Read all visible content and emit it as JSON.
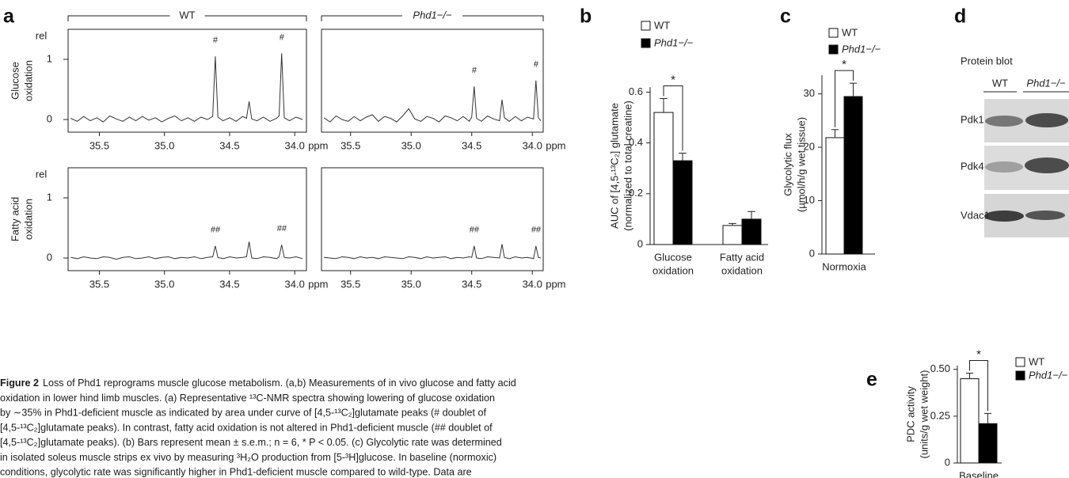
{
  "chart_data": [
    {
      "type": "spectrum",
      "panel": "a",
      "columns": [
        "WT",
        "Phd1−/−"
      ],
      "rows": [
        [
          "Glucose",
          "oxidation"
        ],
        [
          "Fatty acid",
          "oxidation"
        ]
      ],
      "ylabel": "rel",
      "xlabel": "ppm",
      "color": "#333333",
      "xlim": [
        35.74,
        33.91
      ],
      "ylim": [
        -0.21,
        1.5
      ],
      "xticks": [
        35.5,
        {
          "value": 35,
          "label": "35.0"
        },
        34.5,
        {
          "value": 34,
          "label": "34.0"
        }
      ],
      "yticks": [
        0,
        1
      ],
      "panels": [
        {
          "x": [
            35.72,
            35.67,
            35.62,
            35.57,
            35.52,
            35.47,
            35.42,
            35.37,
            35.32,
            35.27,
            35.22,
            35.17,
            35.12,
            35.07,
            35.02,
            34.97,
            34.92,
            34.87,
            34.82,
            34.77,
            34.72,
            34.67,
            34.63,
            34.61,
            34.59,
            34.55,
            34.5,
            34.45,
            34.4,
            34.37,
            34.35,
            34.33,
            34.29,
            34.24,
            34.19,
            34.14,
            34.12,
            34.1,
            34.08,
            34.04,
            33.99,
            33.94
          ],
          "values": [
            0.02,
            -0.03,
            0.05,
            -0.02,
            0.03,
            -0.04,
            0.06,
            0.01,
            -0.03,
            0.04,
            -0.02,
            0.05,
            -0.01,
            0.03,
            -0.04,
            0.02,
            0.06,
            -0.02,
            0.03,
            -0.03,
            0.04,
            0.0,
            0.05,
            1.05,
            0.04,
            -0.02,
            0.03,
            -0.03,
            0.05,
            0.02,
            0.3,
            0.01,
            -0.02,
            0.04,
            -0.03,
            0.02,
            0.06,
            1.1,
            0.03,
            -0.02,
            0.04,
            0.0
          ],
          "annotations": [
            {
              "text": "#",
              "x": 34.61
            },
            {
              "text": "#",
              "x": 34.1
            }
          ]
        },
        {
          "x": [
            35.72,
            35.67,
            35.62,
            35.57,
            35.52,
            35.47,
            35.42,
            35.37,
            35.32,
            35.27,
            35.22,
            35.17,
            35.12,
            35.07,
            35.02,
            34.97,
            34.92,
            34.87,
            34.82,
            34.77,
            34.72,
            34.67,
            34.62,
            34.57,
            34.52,
            34.5,
            34.48,
            34.46,
            34.42,
            34.37,
            34.32,
            34.27,
            34.25,
            34.23,
            34.19,
            34.14,
            34.09,
            34.04,
            33.99,
            33.97,
            33.95,
            33.93
          ],
          "values": [
            0.03,
            -0.04,
            0.06,
            0.0,
            -0.03,
            0.05,
            -0.02,
            0.04,
            0.08,
            -0.03,
            0.05,
            0.02,
            -0.04,
            0.06,
            0.18,
            0.01,
            -0.03,
            0.05,
            0.02,
            -0.04,
            0.06,
            0.03,
            -0.02,
            0.05,
            -0.03,
            0.04,
            0.55,
            0.02,
            -0.03,
            0.06,
            0.01,
            -0.02,
            0.33,
            0.03,
            -0.03,
            0.05,
            -0.02,
            0.04,
            0.01,
            0.65,
            0.03,
            -0.02
          ],
          "annotations": [
            {
              "text": "#",
              "x": 34.48
            },
            {
              "text": "#",
              "x": 33.97
            }
          ]
        },
        {
          "x": [
            35.72,
            35.67,
            35.62,
            35.57,
            35.52,
            35.47,
            35.42,
            35.37,
            35.32,
            35.27,
            35.22,
            35.17,
            35.12,
            35.07,
            35.02,
            34.97,
            34.92,
            34.87,
            34.82,
            34.77,
            34.72,
            34.67,
            34.63,
            34.61,
            34.59,
            34.55,
            34.5,
            34.45,
            34.4,
            34.37,
            34.35,
            34.33,
            34.29,
            34.24,
            34.19,
            34.14,
            34.12,
            34.1,
            34.08,
            34.04,
            33.99,
            33.94
          ],
          "values": [
            0.01,
            -0.01,
            0.02,
            0.0,
            -0.01,
            0.02,
            0.01,
            -0.02,
            0.01,
            0.02,
            -0.01,
            0.0,
            0.02,
            -0.01,
            0.01,
            0.02,
            -0.01,
            0.01,
            0.0,
            0.02,
            -0.01,
            0.01,
            0.02,
            0.2,
            0.01,
            -0.01,
            0.02,
            0.0,
            0.01,
            0.02,
            0.27,
            0.0,
            -0.01,
            0.02,
            0.01,
            -0.01,
            0.02,
            0.22,
            0.01,
            0.0,
            0.02,
            -0.01
          ],
          "annotations": [
            {
              "text": "##",
              "x": 34.61
            },
            {
              "text": "##",
              "x": 34.1
            }
          ]
        },
        {
          "x": [
            35.72,
            35.67,
            35.62,
            35.57,
            35.52,
            35.47,
            35.42,
            35.37,
            35.32,
            35.27,
            35.22,
            35.17,
            35.12,
            35.07,
            35.02,
            34.97,
            34.92,
            34.87,
            34.82,
            34.77,
            34.72,
            34.67,
            34.62,
            34.57,
            34.52,
            34.5,
            34.48,
            34.46,
            34.42,
            34.37,
            34.32,
            34.27,
            34.25,
            34.23,
            34.19,
            34.14,
            34.09,
            34.04,
            33.99,
            33.97,
            33.95,
            33.93
          ],
          "values": [
            0.01,
            0.0,
            -0.01,
            0.02,
            0.01,
            -0.01,
            0.02,
            0.0,
            0.01,
            -0.01,
            0.02,
            0.01,
            0.0,
            -0.01,
            0.02,
            0.01,
            -0.01,
            0.02,
            0.0,
            0.01,
            0.02,
            -0.01,
            0.01,
            0.0,
            0.02,
            0.01,
            0.2,
            0.0,
            -0.01,
            0.02,
            0.01,
            0.0,
            0.23,
            0.01,
            -0.01,
            0.02,
            0.0,
            0.01,
            -0.01,
            0.2,
            0.01,
            0.0
          ],
          "annotations": [
            {
              "text": "##",
              "x": 34.48
            },
            {
              "text": "##",
              "x": 33.97
            }
          ]
        }
      ]
    },
    {
      "type": "bar",
      "panel": "b",
      "ylabel": [
        "AUC of [4,5-¹³C₂] glutamate",
        "(normalized to total creatine)"
      ],
      "categories": [
        [
          "Glucose",
          "oxidation"
        ],
        [
          "Fatty acid",
          "oxidation"
        ]
      ],
      "series": [
        {
          "name": "WT",
          "color": "#ffffff",
          "values": [
            0.52,
            0.075
          ],
          "errors": [
            0.055,
            0.008
          ]
        },
        {
          "name": "Phd1−/−",
          "color": "#000000",
          "values": [
            0.33,
            0.1
          ],
          "errors": [
            0.03,
            0.03
          ]
        }
      ],
      "ylim": [
        0,
        0.62
      ],
      "yticks": [
        0,
        0.2,
        0.4,
        0.6
      ],
      "significance": "*"
    },
    {
      "type": "bar",
      "panel": "c",
      "ylabel": [
        "Glycolytic flux",
        "(μmol/h/g wet tissue)"
      ],
      "categories": [
        [
          "Normoxia"
        ]
      ],
      "series": [
        {
          "name": "WT",
          "color": "#ffffff",
          "values": [
            21.8
          ],
          "errors": [
            1.5
          ]
        },
        {
          "name": "Phd1−/−",
          "color": "#000000",
          "values": [
            29.5
          ],
          "errors": [
            2.5
          ]
        }
      ],
      "ylim": [
        0,
        33.5
      ],
      "yticks": [
        0,
        10,
        20,
        30
      ],
      "significance": "*"
    },
    {
      "type": "bar",
      "panel": "e",
      "ylabel": [
        "PDC activity",
        "(units/g wet weight)"
      ],
      "categories": [
        [
          "Baseline"
        ]
      ],
      "series": [
        {
          "name": "WT",
          "color": "#ffffff",
          "values": [
            0.45
          ],
          "errors": [
            0.03
          ]
        },
        {
          "name": "Phd1−/−",
          "color": "#000000",
          "values": [
            0.21
          ],
          "errors": [
            0.055
          ]
        }
      ],
      "ylim": [
        0,
        0.52
      ],
      "yticks": [
        0,
        0.25,
        {
          "value": 0.5,
          "label": "0.50"
        }
      ],
      "significance": "*"
    }
  ],
  "blot": {
    "panel": "d",
    "title": "Protein blot",
    "lanes": [
      "WT",
      "Phd1−/−"
    ],
    "proteins": [
      "Pdk1",
      "Pdk4",
      "Vdac1"
    ]
  },
  "caption": {
    "label": "Figure 2",
    "lines": [
      "Loss of Phd1 reprograms muscle glucose metabolism. (a,b) Measurements of in vivo glucose and fatty acid",
      "oxidation in lower hind limb muscles. (a) Representative ¹³C-NMR spectra showing lowering of glucose oxidation",
      "by ∼35% in Phd1-deficient muscle as indicated by area under curve of [4,5-¹³C₂]glutamate peaks (# doublet of",
      "[4,5-¹³C₂]glutamate peaks). In contrast, fatty acid oxidation is not altered in Phd1-deficient muscle (## doublet of",
      "[4,5-¹³C₂]glutamate peaks). (b) Bars represent mean ± s.e.m.; n = 6, * P < 0.05. (c) Glycolytic rate was determined",
      "in isolated soleus muscle strips ex vivo by measuring ³H₂O production from [5-³H]glucose. In baseline (normoxic)",
      "conditions, glycolytic rate was significantly higher in Phd1-deficient muscle compared to wild-type. Data are"
    ]
  }
}
